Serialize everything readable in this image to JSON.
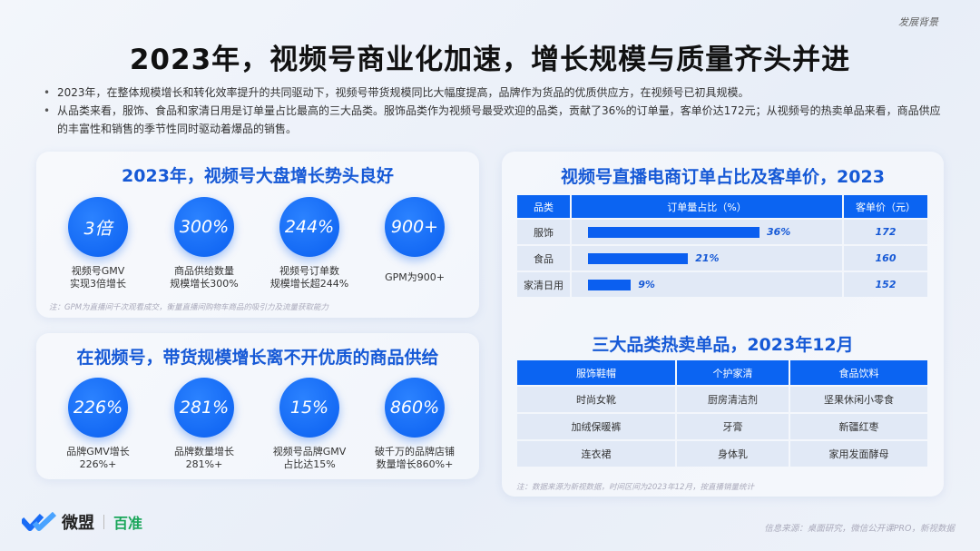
{
  "section_label": "发展背景",
  "title": "2023年，视频号商业化加速，增长规模与质量齐头并进",
  "bullets": [
    "2023年，在整体规模增长和转化效率提升的共同驱动下，视频号带货规模同比大幅度提高，品牌作为货品的优质供应方，在视频号已初具规模。",
    "从品类来看，服饰、食品和家清日用是订单量占比最高的三大品类。服饰品类作为视频号最受欢迎的品类，贡献了36%的订单量，客单价达172元；从视频号的热卖单品来看，商品供应的丰富性和销售的季节性同时驱动着爆品的销售。"
  ],
  "panel1": {
    "title": "2023年，视频号大盘增长势头良好",
    "stats": [
      {
        "value": "3倍",
        "label": "视频号GMV\n实现3倍增长"
      },
      {
        "value": "300%",
        "label": "商品供给数量\n规模增长300%"
      },
      {
        "value": "244%",
        "label": "视频号订单数\n规模增长超244%"
      },
      {
        "value": "900+",
        "label": "GPM为900+"
      }
    ],
    "note": "注：GPM为直播间千次观看成交，衡量直播间购物车商品的吸引力及流量获取能力"
  },
  "panel2": {
    "title": "在视频号，带货规模增长离不开优质的商品供给",
    "stats": [
      {
        "value": "226%",
        "label": "品牌GMV增长\n226%+"
      },
      {
        "value": "281%",
        "label": "品牌数量增长\n281%+"
      },
      {
        "value": "15%",
        "label": "视频号品牌GMV\n占比达15%"
      },
      {
        "value": "860%",
        "label": "破千万的品牌店铺\n数量增长860%+"
      }
    ]
  },
  "panel3": {
    "title": "视频号直播电商订单占比及客单价，2023",
    "headers": [
      "品类",
      "订单量占比（%）",
      "客单价（元）"
    ],
    "rows": [
      {
        "category": "服饰",
        "share": 36,
        "share_label": "36%",
        "price": "172"
      },
      {
        "category": "食品",
        "share": 21,
        "share_label": "21%",
        "price": "160"
      },
      {
        "category": "家清日用",
        "share": 9,
        "share_label": "9%",
        "price": "152"
      }
    ],
    "title2": "三大品类热卖单品，2023年12月",
    "headers2": [
      "服饰鞋帽",
      "个护家清",
      "食品饮料"
    ],
    "rows2": [
      [
        "时尚女靴",
        "厨房清洁剂",
        "坚果休闲小零食"
      ],
      [
        "加绒保暖裤",
        "牙膏",
        "新疆红枣"
      ],
      [
        "连衣裙",
        "身体乳",
        "家用发面酵母"
      ]
    ],
    "note": "注：数据来源为新视数据，时间区间为2023年12月，按直播销量统计"
  },
  "source": "信息来源：桌面研究，微信公开课PRO，新视数据",
  "logo": {
    "brand1": "微盟",
    "brand2": "百准"
  },
  "colors": {
    "accent": "#0b64f2",
    "title_blue": "#1659d6",
    "brand2_green": "#1aa65a"
  }
}
